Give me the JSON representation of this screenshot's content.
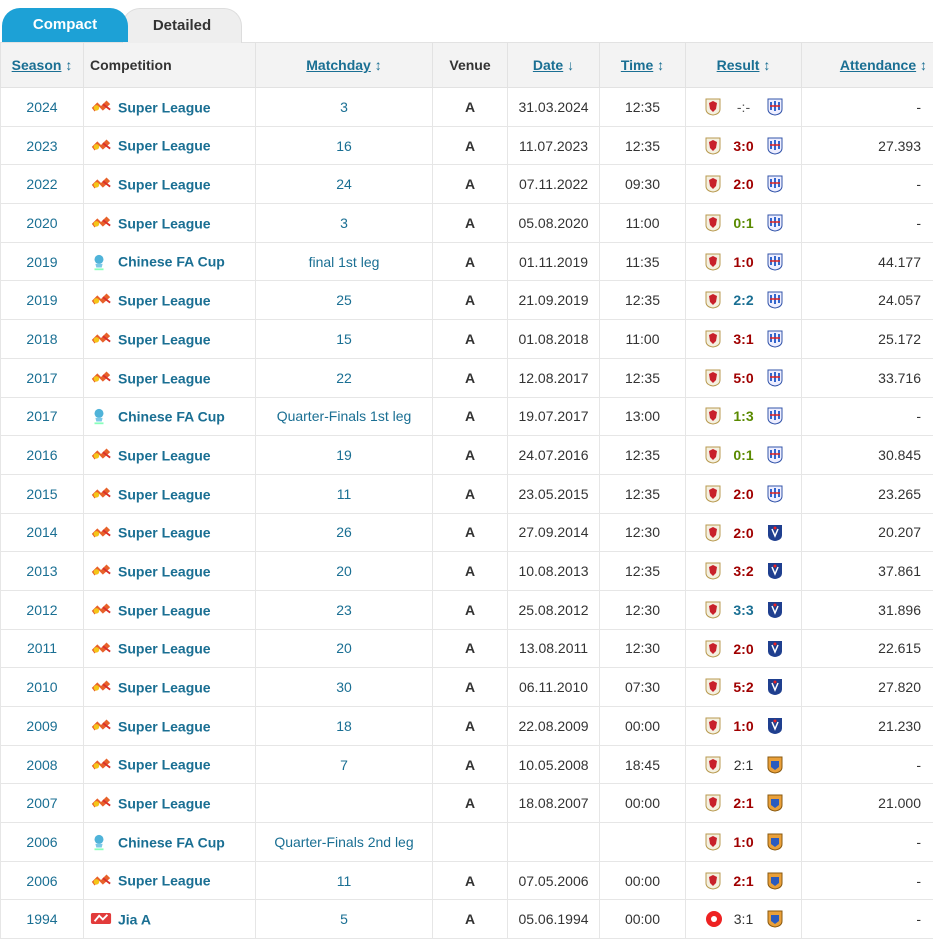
{
  "tabs": {
    "compact": "Compact",
    "detailed": "Detailed"
  },
  "headers": {
    "season": "Season",
    "competition": "Competition",
    "matchday": "Matchday",
    "venue": "Venue",
    "date": "Date",
    "time": "Time",
    "result": "Result",
    "attendance": "Attendance",
    "sort_updown": "↕",
    "sort_down": "↓"
  },
  "colors": {
    "accent": "#1da1d6",
    "link": "#1a6f93",
    "win": "#a00000",
    "loss": "#5a8a00"
  },
  "rows": [
    {
      "season": "2024",
      "comp": "Super League",
      "icon": "super-league-logo",
      "matchday": "3",
      "venue": "A",
      "date": "31.03.2024",
      "time": "12:35",
      "result": "-:-",
      "rclass": "dim",
      "home": "red",
      "away": "blue",
      "attendance": "-"
    },
    {
      "season": "2023",
      "comp": "Super League",
      "icon": "super-league-logo",
      "matchday": "16",
      "venue": "A",
      "date": "11.07.2023",
      "time": "12:35",
      "result": "3:0",
      "rclass": "win",
      "home": "red",
      "away": "blue",
      "attendance": "27.393"
    },
    {
      "season": "2022",
      "comp": "Super League",
      "icon": "super-league-logo",
      "matchday": "24",
      "venue": "A",
      "date": "07.11.2022",
      "time": "09:30",
      "result": "2:0",
      "rclass": "win",
      "home": "red",
      "away": "blue",
      "attendance": "-"
    },
    {
      "season": "2020",
      "comp": "Super League",
      "icon": "super-league-logo",
      "matchday": "3",
      "venue": "A",
      "date": "05.08.2020",
      "time": "11:00",
      "result": "0:1",
      "rclass": "loss",
      "home": "red",
      "away": "blue",
      "attendance": "-"
    },
    {
      "season": "2019",
      "comp": "Chinese FA Cup",
      "icon": "fa-cup-logo",
      "matchday": "final 1st leg",
      "venue": "A",
      "date": "01.11.2019",
      "time": "11:35",
      "result": "1:0",
      "rclass": "win",
      "home": "red",
      "away": "blue",
      "attendance": "44.177"
    },
    {
      "season": "2019",
      "comp": "Super League",
      "icon": "super-league-logo",
      "matchday": "25",
      "venue": "A",
      "date": "21.09.2019",
      "time": "12:35",
      "result": "2:2",
      "rclass": "draw",
      "home": "red",
      "away": "blue",
      "attendance": "24.057"
    },
    {
      "season": "2018",
      "comp": "Super League",
      "icon": "super-league-logo",
      "matchday": "15",
      "venue": "A",
      "date": "01.08.2018",
      "time": "11:00",
      "result": "3:1",
      "rclass": "win",
      "home": "red",
      "away": "blue",
      "attendance": "25.172"
    },
    {
      "season": "2017",
      "comp": "Super League",
      "icon": "super-league-logo",
      "matchday": "22",
      "venue": "A",
      "date": "12.08.2017",
      "time": "12:35",
      "result": "5:0",
      "rclass": "win",
      "home": "red",
      "away": "blue",
      "attendance": "33.716"
    },
    {
      "season": "2017",
      "comp": "Chinese FA Cup",
      "icon": "fa-cup-logo",
      "matchday": "Quarter-Finals 1st leg",
      "venue": "A",
      "date": "19.07.2017",
      "time": "13:00",
      "result": "1:3",
      "rclass": "loss",
      "home": "red",
      "away": "blue",
      "attendance": "-"
    },
    {
      "season": "2016",
      "comp": "Super League",
      "icon": "super-league-logo",
      "matchday": "19",
      "venue": "A",
      "date": "24.07.2016",
      "time": "12:35",
      "result": "0:1",
      "rclass": "loss",
      "home": "red",
      "away": "blue",
      "attendance": "30.845"
    },
    {
      "season": "2015",
      "comp": "Super League",
      "icon": "super-league-logo",
      "matchday": "11",
      "venue": "A",
      "date": "23.05.2015",
      "time": "12:35",
      "result": "2:0",
      "rclass": "win",
      "home": "red",
      "away": "blue",
      "attendance": "23.265"
    },
    {
      "season": "2014",
      "comp": "Super League",
      "icon": "super-league-logo",
      "matchday": "26",
      "venue": "A",
      "date": "27.09.2014",
      "time": "12:30",
      "result": "2:0",
      "rclass": "win",
      "home": "red",
      "away": "navy",
      "attendance": "20.207"
    },
    {
      "season": "2013",
      "comp": "Super League",
      "icon": "super-league-logo",
      "matchday": "20",
      "venue": "A",
      "date": "10.08.2013",
      "time": "12:35",
      "result": "3:2",
      "rclass": "win",
      "home": "red",
      "away": "navy",
      "attendance": "37.861"
    },
    {
      "season": "2012",
      "comp": "Super League",
      "icon": "super-league-logo",
      "matchday": "23",
      "venue": "A",
      "date": "25.08.2012",
      "time": "12:30",
      "result": "3:3",
      "rclass": "draw",
      "home": "red",
      "away": "navy",
      "attendance": "31.896"
    },
    {
      "season": "2011",
      "comp": "Super League",
      "icon": "super-league-logo",
      "matchday": "20",
      "venue": "A",
      "date": "13.08.2011",
      "time": "12:30",
      "result": "2:0",
      "rclass": "win",
      "home": "red",
      "away": "navy",
      "attendance": "22.615"
    },
    {
      "season": "2010",
      "comp": "Super League",
      "icon": "super-league-logo",
      "matchday": "30",
      "venue": "A",
      "date": "06.11.2010",
      "time": "07:30",
      "result": "5:2",
      "rclass": "win",
      "home": "red",
      "away": "navy",
      "attendance": "27.820"
    },
    {
      "season": "2009",
      "comp": "Super League",
      "icon": "super-league-logo",
      "matchday": "18",
      "venue": "A",
      "date": "22.08.2009",
      "time": "00:00",
      "result": "1:0",
      "rclass": "win",
      "home": "red",
      "away": "navy",
      "attendance": "21.230"
    },
    {
      "season": "2008",
      "comp": "Super League",
      "icon": "super-league-logo",
      "matchday": "7",
      "venue": "A",
      "date": "10.05.2008",
      "time": "18:45",
      "result": "2:1",
      "rclass": "plain",
      "home": "red",
      "away": "orange",
      "attendance": "-"
    },
    {
      "season": "2007",
      "comp": "Super League",
      "icon": "super-league-logo",
      "matchday": "",
      "venue": "A",
      "date": "18.08.2007",
      "time": "00:00",
      "result": "2:1",
      "rclass": "win",
      "home": "red",
      "away": "orange",
      "attendance": "21.000"
    },
    {
      "season": "2006",
      "comp": "Chinese FA Cup",
      "icon": "fa-cup-logo",
      "matchday": "Quarter-Finals 2nd leg",
      "venue": "",
      "date": "",
      "time": "",
      "result": "1:0",
      "rclass": "win",
      "home": "red",
      "away": "orange",
      "attendance": "-"
    },
    {
      "season": "2006",
      "comp": "Super League",
      "icon": "super-league-logo",
      "matchday": "11",
      "venue": "A",
      "date": "07.05.2006",
      "time": "00:00",
      "result": "2:1",
      "rclass": "win",
      "home": "red",
      "away": "orange",
      "attendance": "-"
    },
    {
      "season": "1994",
      "comp": "Jia A",
      "icon": "jia-a-logo",
      "matchday": "5",
      "venue": "A",
      "date": "05.06.1994",
      "time": "00:00",
      "result": "3:1",
      "rclass": "plain",
      "home": "ball",
      "away": "orange",
      "attendance": "-"
    }
  ]
}
